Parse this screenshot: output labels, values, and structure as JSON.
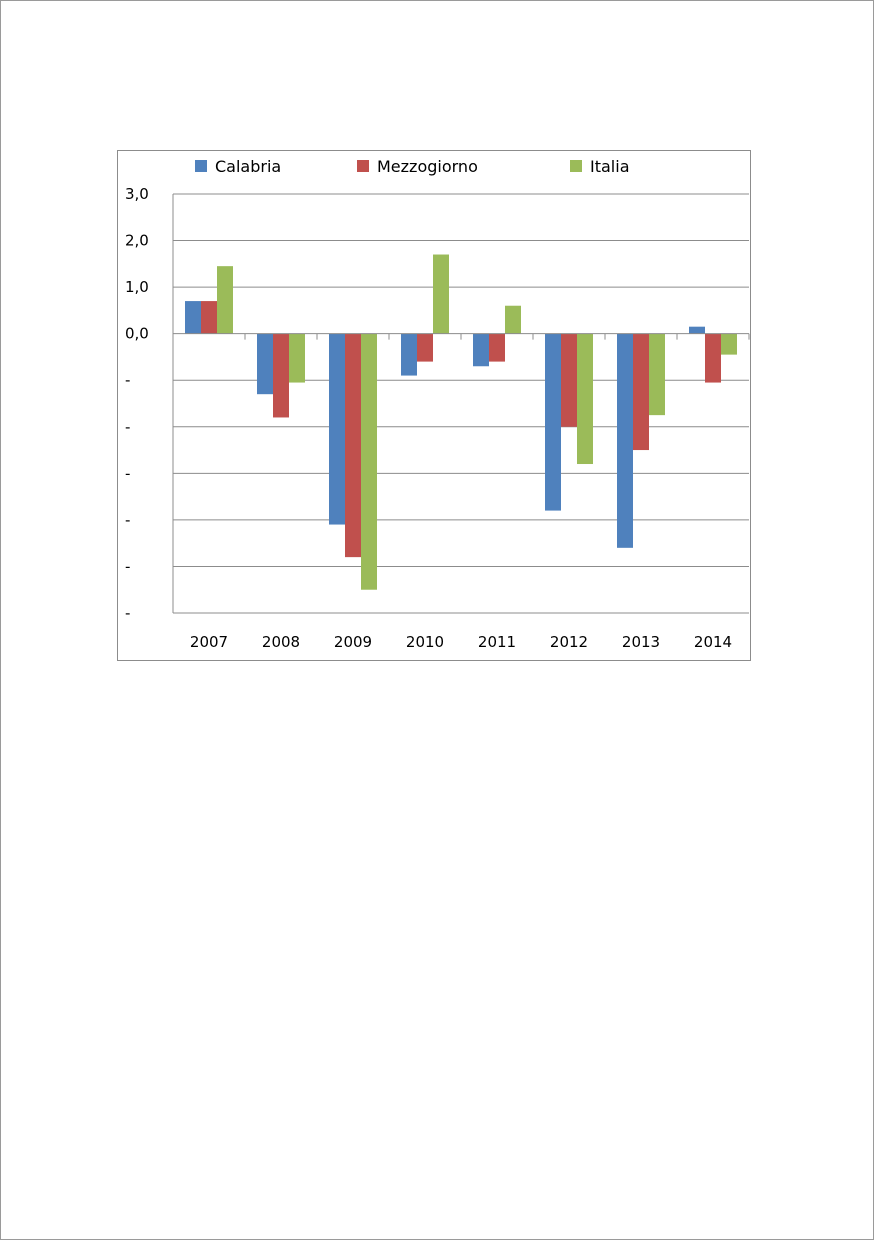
{
  "chart_data": {
    "type": "bar",
    "categories": [
      "2007",
      "2008",
      "2009",
      "2010",
      "2011",
      "2012",
      "2013",
      "2014"
    ],
    "series": [
      {
        "name": "Calabria",
        "color": "#4f81bd",
        "values": [
          0.7,
          -1.3,
          -4.1,
          -0.9,
          -0.7,
          -3.8,
          -4.6,
          0.15
        ]
      },
      {
        "name": "Mezzogiorno",
        "color": "#c0504d",
        "values": [
          0.7,
          -1.8,
          -4.8,
          -0.6,
          -0.6,
          -2.0,
          -2.5,
          -1.05
        ]
      },
      {
        "name": "Italia",
        "color": "#9bbb59",
        "values": [
          1.45,
          -1.05,
          -5.5,
          1.7,
          0.6,
          -2.8,
          -1.75,
          -0.45
        ]
      }
    ],
    "ylim": [
      -6,
      3
    ],
    "yticks": [
      {
        "value": 3,
        "label": "3,0"
      },
      {
        "value": 2,
        "label": "2,0"
      },
      {
        "value": 1,
        "label": "1,0"
      },
      {
        "value": 0,
        "label": "0,0"
      },
      {
        "value": -1,
        "label": "-"
      },
      {
        "value": -2,
        "label": "-"
      },
      {
        "value": -3,
        "label": "-"
      },
      {
        "value": -4,
        "label": "-"
      },
      {
        "value": -5,
        "label": "-"
      },
      {
        "value": -6,
        "label": "-"
      }
    ],
    "grid": true,
    "legend": "top"
  }
}
